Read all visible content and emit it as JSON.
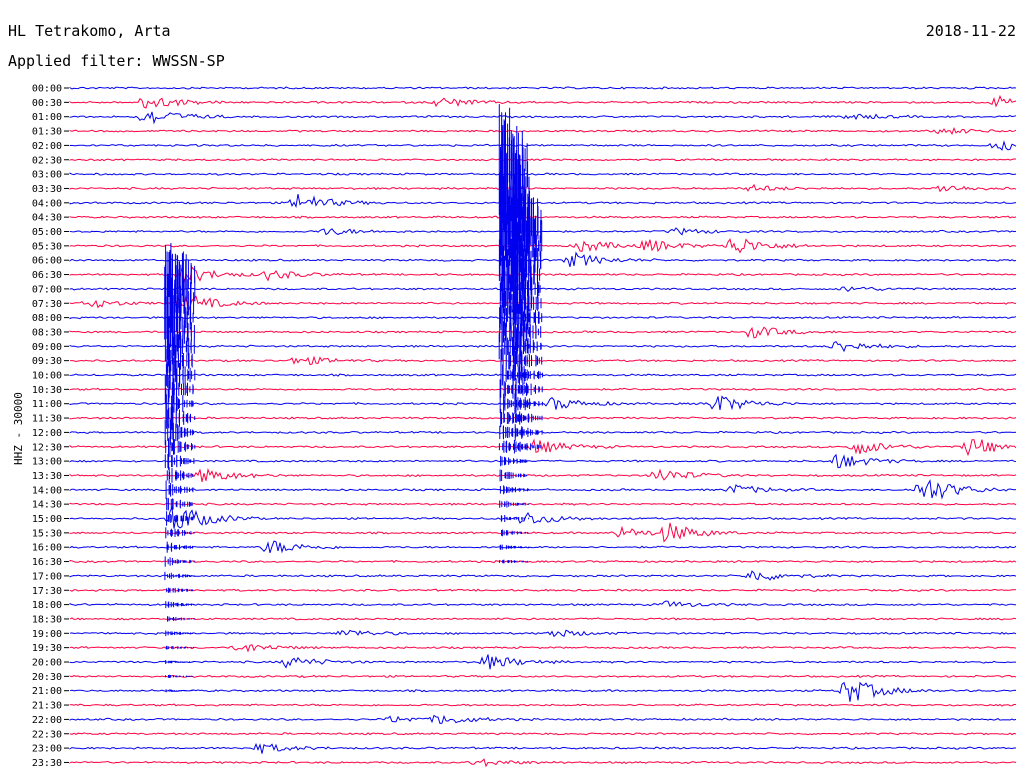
{
  "header": {
    "station": "HL Tetrakomo, Arta",
    "date": "2018-11-22",
    "filter": "Applied filter: WWSSN-SP"
  },
  "colors": {
    "blue": "#0000ee",
    "red": "#ff0044"
  },
  "chart_data": {
    "type": "line",
    "title": "HL Tetrakomo, Arta",
    "subtitle": "Applied filter: WWSSN-SP",
    "date": "2018-11-22",
    "ylabel": "HHZ - 30000",
    "tick_labels": [
      "00:00",
      "00:30",
      "01:00",
      "01:30",
      "02:00",
      "02:30",
      "03:00",
      "03:30",
      "04:00",
      "04:30",
      "05:00",
      "05:30",
      "06:00",
      "06:30",
      "07:00",
      "07:30",
      "08:00",
      "08:30",
      "09:00",
      "09:30",
      "10:00",
      "10:30",
      "11:00",
      "11:30",
      "12:00",
      "12:30",
      "13:00",
      "13:30",
      "14:00",
      "14:30",
      "15:00",
      "15:30",
      "16:00",
      "16:30",
      "17:00",
      "17:30",
      "18:00",
      "18:30",
      "19:00",
      "19:30",
      "20:00",
      "20:30",
      "21:00",
      "21:30",
      "22:00",
      "22:30",
      "23:00",
      "23:30"
    ],
    "trace_colors": [
      "blue",
      "red"
    ],
    "events": [
      {
        "row": 1,
        "pos": 0.08,
        "amp": 1.2
      },
      {
        "row": 1,
        "pos": 0.39,
        "amp": 0.8
      },
      {
        "row": 1,
        "pos": 0.98,
        "amp": 0.9
      },
      {
        "row": 2,
        "pos": 0.08,
        "amp": 1.5
      },
      {
        "row": 2,
        "pos": 0.82,
        "amp": 0.5
      },
      {
        "row": 3,
        "pos": 0.92,
        "amp": 0.5
      },
      {
        "row": 4,
        "pos": 0.98,
        "amp": 0.8
      },
      {
        "row": 7,
        "pos": 0.72,
        "amp": 0.5
      },
      {
        "row": 7,
        "pos": 0.92,
        "amp": 0.6
      },
      {
        "row": 8,
        "pos": 0.24,
        "amp": 1.5
      },
      {
        "row": 10,
        "pos": 0.27,
        "amp": 0.6
      },
      {
        "row": 10,
        "pos": 0.64,
        "amp": 0.5
      },
      {
        "row": 11,
        "pos": 0.61,
        "amp": 1.0
      },
      {
        "row": 11,
        "pos": 0.7,
        "amp": 1.6
      },
      {
        "row": 11,
        "pos": 0.54,
        "amp": 1.0
      },
      {
        "row": 12,
        "pos": 0.53,
        "amp": 1.2
      },
      {
        "row": 13,
        "pos": 0.21,
        "amp": 0.8
      },
      {
        "row": 13,
        "pos": 0.12,
        "amp": 1.5
      },
      {
        "row": 14,
        "pos": 0.82,
        "amp": 0.4
      },
      {
        "row": 15,
        "pos": 0.02,
        "amp": 0.7
      },
      {
        "row": 15,
        "pos": 0.12,
        "amp": 1.6
      },
      {
        "row": 17,
        "pos": 0.72,
        "amp": 1.0
      },
      {
        "row": 18,
        "pos": 0.81,
        "amp": 1.0
      },
      {
        "row": 19,
        "pos": 0.24,
        "amp": 0.8
      },
      {
        "row": 22,
        "pos": 0.68,
        "amp": 1.6
      },
      {
        "row": 22,
        "pos": 0.51,
        "amp": 1.0
      },
      {
        "row": 25,
        "pos": 0.83,
        "amp": 1.2
      },
      {
        "row": 25,
        "pos": 0.95,
        "amp": 1.6
      },
      {
        "row": 25,
        "pos": 0.49,
        "amp": 1.2
      },
      {
        "row": 26,
        "pos": 0.81,
        "amp": 1.3
      },
      {
        "row": 27,
        "pos": 0.62,
        "amp": 1.2
      },
      {
        "row": 27,
        "pos": 0.14,
        "amp": 1.2
      },
      {
        "row": 28,
        "pos": 0.7,
        "amp": 0.8
      },
      {
        "row": 28,
        "pos": 0.9,
        "amp": 2.4
      },
      {
        "row": 30,
        "pos": 0.11,
        "amp": 2.6
      },
      {
        "row": 30,
        "pos": 0.48,
        "amp": 1.2
      },
      {
        "row": 31,
        "pos": 0.58,
        "amp": 0.9
      },
      {
        "row": 31,
        "pos": 0.63,
        "amp": 1.5
      },
      {
        "row": 32,
        "pos": 0.21,
        "amp": 1.2
      },
      {
        "row": 34,
        "pos": 0.72,
        "amp": 1.0
      },
      {
        "row": 36,
        "pos": 0.63,
        "amp": 0.5
      },
      {
        "row": 38,
        "pos": 0.29,
        "amp": 0.6
      },
      {
        "row": 38,
        "pos": 0.51,
        "amp": 0.6
      },
      {
        "row": 39,
        "pos": 0.18,
        "amp": 0.8
      },
      {
        "row": 40,
        "pos": 0.23,
        "amp": 0.9
      },
      {
        "row": 40,
        "pos": 0.44,
        "amp": 1.2
      },
      {
        "row": 42,
        "pos": 0.82,
        "amp": 2.2
      },
      {
        "row": 44,
        "pos": 0.34,
        "amp": 0.5
      },
      {
        "row": 44,
        "pos": 0.39,
        "amp": 0.8
      },
      {
        "row": 46,
        "pos": 0.2,
        "amp": 0.8
      },
      {
        "row": 47,
        "pos": 0.43,
        "amp": 0.6
      }
    ],
    "bursts": [
      {
        "row_start": 5,
        "row_end": 33,
        "pos": 0.453,
        "amp": 6,
        "color": "blue"
      },
      {
        "row_start": 9,
        "row_end": 25,
        "pos": 0.467,
        "amp": 4,
        "color": "blue"
      },
      {
        "row_start": 13,
        "row_end": 42,
        "pos": 0.1,
        "amp": 4,
        "color": "blue"
      }
    ]
  }
}
